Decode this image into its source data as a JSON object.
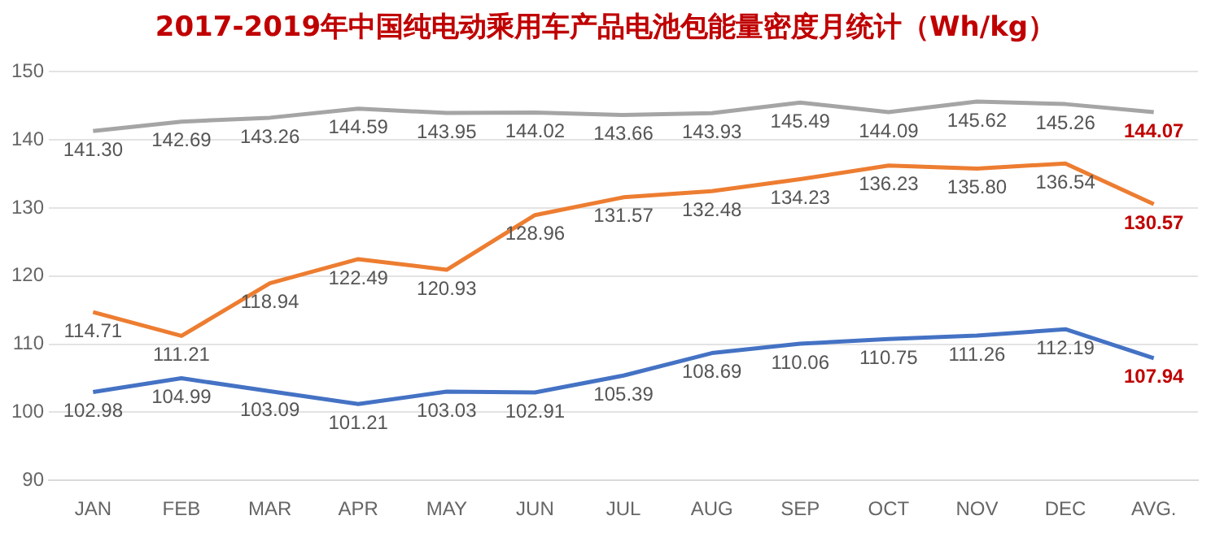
{
  "chart_data": {
    "type": "line",
    "title": "2017-2019年中国纯电动乘用车产品电池包能量密度月统计（Wh/kg）",
    "categories": [
      "JAN",
      "FEB",
      "MAR",
      "APR",
      "MAY",
      "JUN",
      "JUL",
      "AUG",
      "SEP",
      "OCT",
      "NOV",
      "DEC",
      "AVG."
    ],
    "series": [
      {
        "color": "#a5a5a5",
        "values": [
          141.3,
          142.69,
          143.26,
          144.59,
          143.95,
          144.02,
          143.66,
          143.93,
          145.49,
          144.09,
          145.62,
          145.26,
          144.07
        ],
        "value_labels": [
          "141.30",
          "142.69",
          "143.26",
          "144.59",
          "143.95",
          "144.02",
          "143.66",
          "143.93",
          "145.49",
          "144.09",
          "145.62",
          "145.26",
          "144.07"
        ]
      },
      {
        "color": "#ed7d31",
        "values": [
          114.71,
          111.21,
          118.94,
          122.49,
          120.93,
          128.96,
          131.57,
          132.48,
          134.23,
          136.23,
          135.8,
          136.54,
          130.57
        ],
        "value_labels": [
          "114.71",
          "111.21",
          "118.94",
          "122.49",
          "120.93",
          "128.96",
          "131.57",
          "132.48",
          "134.23",
          "136.23",
          "135.80",
          "136.54",
          "130.57"
        ]
      },
      {
        "color": "#4472c4",
        "values": [
          102.98,
          104.99,
          103.09,
          101.21,
          103.03,
          102.91,
          105.39,
          108.69,
          110.06,
          110.75,
          111.26,
          112.19,
          107.94
        ],
        "value_labels": [
          "102.98",
          "104.99",
          "103.09",
          "101.21",
          "103.03",
          "102.91",
          "105.39",
          "108.69",
          "110.06",
          "110.75",
          "111.26",
          "112.19",
          "107.94"
        ]
      }
    ],
    "ylim": [
      90,
      150
    ],
    "yticks": [
      90,
      100,
      110,
      120,
      130,
      140,
      150
    ],
    "grid": "y",
    "marker": "none",
    "line_style": "solid",
    "legend": false
  }
}
